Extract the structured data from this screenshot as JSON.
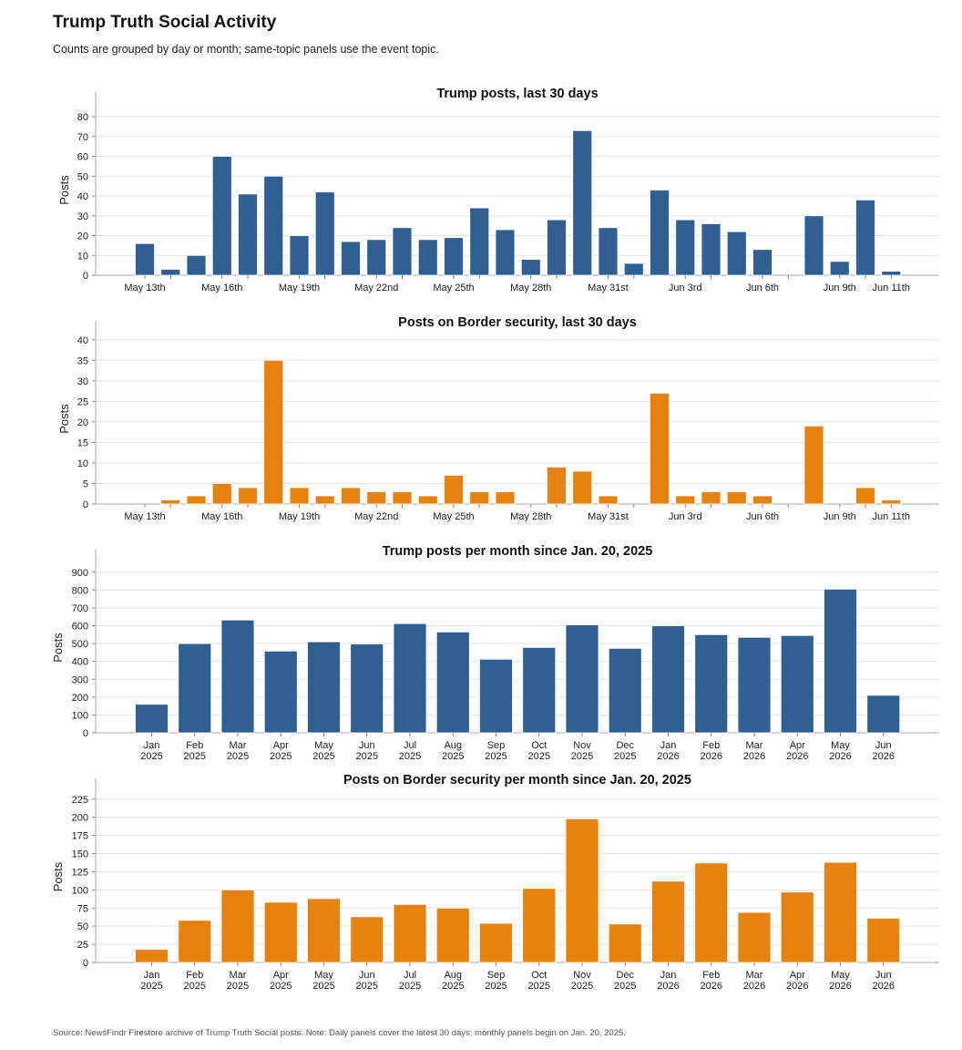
{
  "header": {
    "title": "Trump Truth Social Activity",
    "subtitle": "Counts are grouped by day or month; same-topic panels use the event topic."
  },
  "footer": {
    "source": "Source: NewsFindr Firestore archive of Trump Truth Social posts. Note: Daily panels cover the latest 30 days; monthly panels begin on Jan. 20, 2025."
  },
  "colors": {
    "blue": "#2f6091",
    "orange": "#e8820e",
    "grid": "#e3e3e3",
    "axis": "#aaaaaa"
  },
  "chart_data": [
    {
      "type": "bar",
      "title": "Trump posts, last 30 days",
      "ylabel": "Posts",
      "color": "#2f6091",
      "ylim": [
        0,
        86
      ],
      "yticks": [
        0,
        10,
        20,
        30,
        40,
        50,
        60,
        70,
        80
      ],
      "categories": [
        "May 13th",
        "May 14th",
        "May 15th",
        "May 16th",
        "May 17th",
        "May 18th",
        "May 19th",
        "May 20th",
        "May 21st",
        "May 22nd",
        "May 23rd",
        "May 24th",
        "May 25th",
        "May 26th",
        "May 27th",
        "May 28th",
        "May 29th",
        "May 30th",
        "May 31st",
        "Jun 1st",
        "Jun 2nd",
        "Jun 3rd",
        "Jun 4th",
        "Jun 5th",
        "Jun 6th",
        "Jun 7th",
        "Jun 8th",
        "Jun 9th",
        "Jun 10th",
        "Jun 11th"
      ],
      "tick_labels": [
        "May 13th",
        "May 16th",
        "May 19th",
        "May 22nd",
        "May 25th",
        "May 28th",
        "May 31st",
        "Jun 3rd",
        "Jun 6th",
        "Jun 9th",
        "Jun 11th"
      ],
      "values": [
        16,
        3,
        10,
        60,
        41,
        50,
        20,
        42,
        17,
        18,
        24,
        18,
        19,
        34,
        23,
        8,
        28,
        73,
        24,
        6,
        43,
        28,
        26,
        22,
        13,
        0,
        30,
        7,
        38,
        2
      ]
    },
    {
      "type": "bar",
      "title": "Posts on Border security, last 30 days",
      "ylabel": "Posts",
      "color": "#e8820e",
      "ylim": [
        0,
        41.5
      ],
      "yticks": [
        0,
        5,
        10,
        15,
        20,
        25,
        30,
        35,
        40
      ],
      "categories": [
        "May 13th",
        "May 14th",
        "May 15th",
        "May 16th",
        "May 17th",
        "May 18th",
        "May 19th",
        "May 20th",
        "May 21st",
        "May 22nd",
        "May 23rd",
        "May 24th",
        "May 25th",
        "May 26th",
        "May 27th",
        "May 28th",
        "May 29th",
        "May 30th",
        "May 31st",
        "Jun 1st",
        "Jun 2nd",
        "Jun 3rd",
        "Jun 4th",
        "Jun 5th",
        "Jun 6th",
        "Jun 7th",
        "Jun 8th",
        "Jun 9th",
        "Jun 10th",
        "Jun 11th"
      ],
      "tick_labels": [
        "May 13th",
        "May 16th",
        "May 19th",
        "May 22nd",
        "May 25th",
        "May 28th",
        "May 31st",
        "Jun 3rd",
        "Jun 6th",
        "Jun 9th",
        "Jun 11th"
      ],
      "values": [
        0,
        1,
        2,
        5,
        4,
        35,
        4,
        2,
        4,
        3,
        3,
        2,
        7,
        3,
        3,
        0,
        9,
        8,
        2,
        0,
        27,
        2,
        3,
        3,
        2,
        0,
        19,
        0,
        4,
        1
      ]
    },
    {
      "type": "bar",
      "title": "Trump posts per month since Jan. 20, 2025",
      "ylabel": "Posts",
      "color": "#2f6091",
      "ylim": [
        0,
        955
      ],
      "yticks": [
        0,
        100,
        200,
        300,
        400,
        500,
        600,
        700,
        800,
        900
      ],
      "categories": [
        "Jan 2025",
        "Feb 2025",
        "Mar 2025",
        "Apr 2025",
        "May 2025",
        "Jun 2025",
        "Jul 2025",
        "Aug 2025",
        "Sep 2025",
        "Oct 2025",
        "Nov 2025",
        "Dec 2025",
        "Jan 2026",
        "Feb 2026",
        "Mar 2026",
        "Apr 2026",
        "May 2026",
        "Jun 2026"
      ],
      "values": [
        160,
        500,
        632,
        458,
        510,
        498,
        612,
        565,
        412,
        478,
        605,
        473,
        600,
        550,
        535,
        545,
        805,
        210
      ]
    },
    {
      "type": "bar",
      "title": "Posts on Border security per month since Jan. 20, 2025",
      "ylabel": "Posts",
      "color": "#e8820e",
      "ylim": [
        0,
        236
      ],
      "yticks": [
        0,
        25,
        50,
        75,
        100,
        125,
        150,
        175,
        200,
        225
      ],
      "categories": [
        "Jan 2025",
        "Feb 2025",
        "Mar 2025",
        "Apr 2025",
        "May 2025",
        "Jun 2025",
        "Jul 2025",
        "Aug 2025",
        "Sep 2025",
        "Oct 2025",
        "Nov 2025",
        "Dec 2025",
        "Jan 2026",
        "Feb 2026",
        "Mar 2026",
        "Apr 2026",
        "May 2026",
        "Jun 2026"
      ],
      "values": [
        18,
        58,
        100,
        83,
        88,
        63,
        80,
        75,
        54,
        102,
        198,
        53,
        112,
        137,
        69,
        97,
        138,
        61
      ]
    }
  ]
}
